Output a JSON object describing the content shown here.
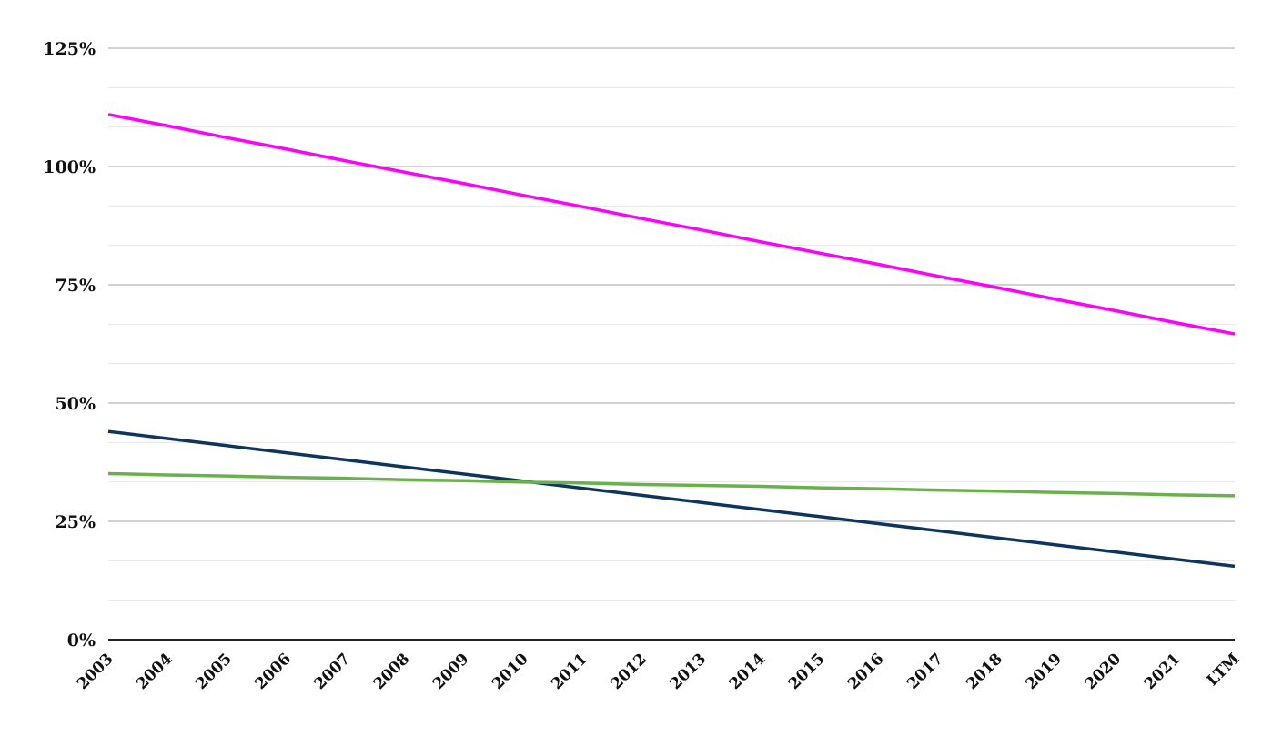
{
  "chart_data": {
    "type": "line",
    "title": "",
    "xlabel": "",
    "ylabel": "",
    "x": [
      "2003",
      "2004",
      "2005",
      "2006",
      "2007",
      "2008",
      "2009",
      "2010",
      "2011",
      "2012",
      "2013",
      "2014",
      "2015",
      "2016",
      "2017",
      "2018",
      "2019",
      "2020",
      "2021",
      "LTM"
    ],
    "ylim": [
      0,
      125
    ],
    "y_ticks": [
      "0%",
      "25%",
      "50%",
      "75%",
      "100%",
      "125%"
    ],
    "y_tick_values": [
      0,
      25,
      50,
      75,
      100,
      125
    ],
    "grid": true,
    "legend": "none",
    "series": [
      {
        "color": "#ff00ff",
        "values": [
          111.0,
          108.6,
          106.1,
          103.7,
          101.2,
          98.8,
          96.4,
          93.9,
          91.5,
          89.0,
          86.6,
          84.1,
          81.7,
          79.3,
          76.8,
          74.4,
          71.9,
          69.5,
          67.0,
          64.6
        ]
      },
      {
        "color": "#0d3560",
        "values": [
          44.0,
          42.5,
          41.0,
          39.5,
          38.0,
          36.5,
          35.0,
          33.5,
          32.0,
          30.5,
          29.0,
          27.5,
          26.0,
          24.5,
          23.0,
          21.5,
          20.0,
          18.5,
          17.0,
          15.5
        ]
      },
      {
        "color": "#6ab04c",
        "values": [
          35.1,
          34.8,
          34.6,
          34.3,
          34.1,
          33.8,
          33.6,
          33.3,
          33.1,
          32.8,
          32.6,
          32.4,
          32.1,
          31.9,
          31.6,
          31.4,
          31.1,
          30.9,
          30.6,
          30.4
        ]
      }
    ]
  }
}
